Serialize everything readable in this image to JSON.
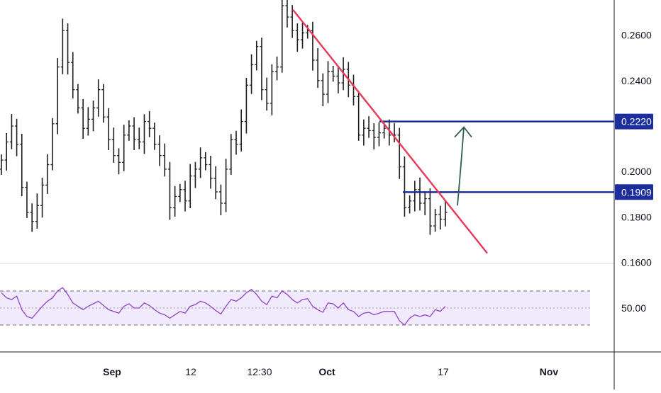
{
  "chart_data": {
    "type": "candlestick",
    "price_axis": {
      "ticks": [
        "0.2600",
        "0.2400",
        "0.2000",
        "0.1800",
        "0.1600"
      ],
      "tick_values": [
        0.26,
        0.24,
        0.2,
        0.18,
        0.16
      ],
      "ylim": [
        0.1595,
        0.2755
      ]
    },
    "price_labels": [
      {
        "value": 0.222,
        "text": "0.2220"
      },
      {
        "value": 0.1909,
        "text": "0.1909"
      }
    ],
    "time_axis": {
      "labels": [
        "Sep",
        "12",
        "12:30",
        "Oct",
        "17",
        "Nov"
      ],
      "bold": [
        true,
        false,
        false,
        true,
        false,
        true
      ]
    },
    "series": [
      {
        "name": "price",
        "close": [
          0.205,
          0.213,
          0.22,
          0.212,
          0.193,
          0.182,
          0.178,
          0.185,
          0.194,
          0.203,
          0.221,
          0.246,
          0.262,
          0.248,
          0.236,
          0.228,
          0.219,
          0.223,
          0.228,
          0.236,
          0.224,
          0.214,
          0.207,
          0.204,
          0.216,
          0.22,
          0.214,
          0.213,
          0.222,
          0.219,
          0.212,
          0.207,
          0.201,
          0.184,
          0.189,
          0.192,
          0.187,
          0.198,
          0.201,
          0.206,
          0.203,
          0.197,
          0.191,
          0.186,
          0.201,
          0.214,
          0.212,
          0.222,
          0.238,
          0.247,
          0.255,
          0.236,
          0.23,
          0.244,
          0.246,
          0.273,
          0.268,
          0.262,
          0.258,
          0.261,
          0.262,
          0.249,
          0.24,
          0.234,
          0.244,
          0.242,
          0.239,
          0.245,
          0.238,
          0.233,
          0.216,
          0.219,
          0.218,
          0.215,
          0.217,
          0.219,
          0.216,
          0.216,
          0.202,
          0.184,
          0.187,
          0.192,
          0.186,
          0.188,
          0.176,
          0.181,
          0.179,
          0.182
        ]
      },
      {
        "name": "RSI",
        "values": [
          68,
          62,
          60,
          64,
          48,
          40,
          38,
          45,
          52,
          58,
          62,
          70,
          74,
          66,
          56,
          52,
          48,
          52,
          55,
          58,
          53,
          48,
          46,
          44,
          52,
          55,
          50,
          50,
          56,
          53,
          48,
          44,
          42,
          38,
          42,
          46,
          44,
          52,
          54,
          58,
          56,
          52,
          47,
          43,
          52,
          60,
          58,
          62,
          68,
          72,
          66,
          58,
          54,
          64,
          62,
          70,
          66,
          60,
          56,
          60,
          61,
          52,
          48,
          45,
          56,
          55,
          50,
          56,
          48,
          46,
          40,
          44,
          45,
          42,
          44,
          46,
          46,
          46,
          35,
          30,
          38,
          42,
          40,
          42,
          40,
          48,
          46,
          52
        ]
      }
    ],
    "rsi": {
      "ylim": [
        0,
        100
      ],
      "bands": [
        70,
        30
      ],
      "midline": 50,
      "value_label": "50.00"
    },
    "annotations": {
      "horizontal_lines": [
        0.222,
        0.1909
      ],
      "trendline": [
        [
          0.2712,
          "start"
        ],
        [
          0.164,
          "end"
        ]
      ],
      "arrow": [
        0.185,
        0.2195
      ]
    },
    "colors": {
      "candles": "#1e1e1e",
      "trendline": "#e8395a",
      "levels": "#14268e",
      "label_bg": "#1c2e9e",
      "rsi_line": "#8e44c8",
      "rsi_band_fill": "#f1eafc",
      "arrow": "#2e5e4e",
      "axis_text": "#131722"
    }
  }
}
